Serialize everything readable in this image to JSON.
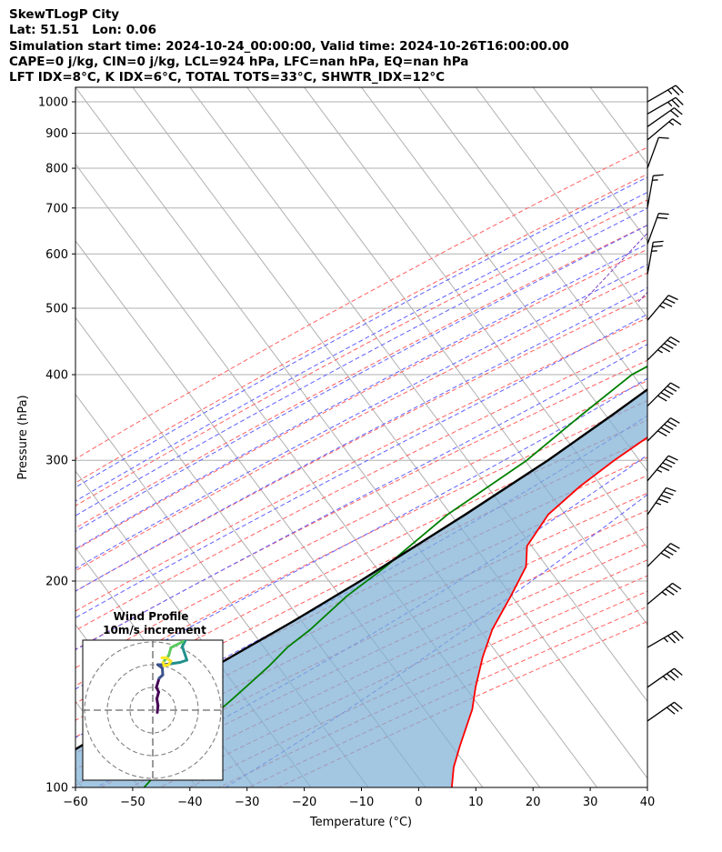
{
  "header": {
    "line1": "SkewTLogP City",
    "line2": "Lat: 51.51   Lon: 0.06",
    "line3": "Simulation start time: 2024-10-24_00:00:00, Valid time: 2024-10-26T16:00:00.00",
    "line4": "CAPE=0 j/kg, CIN=0 j/kg, LCL=924 hPa, LFC=nan hPa, EQ=nan hPa",
    "line5": "LFT IDX=8°C, K IDX=6°C, TOTAL TOTS=33°C, SHWTR_IDX=12°C"
  },
  "chart_data": {
    "type": "skewt-logp",
    "xlabel": "Temperature (°C)",
    "ylabel": "Pressure (hPa)",
    "xlim": [
      -60,
      40
    ],
    "ylim": [
      1050,
      100
    ],
    "x_ticks": [
      -60,
      -50,
      -40,
      -30,
      -20,
      -10,
      0,
      10,
      20,
      30,
      40
    ],
    "y_ticks": [
      100,
      200,
      300,
      400,
      500,
      600,
      700,
      800,
      900,
      1000
    ],
    "grid": true,
    "series": [
      {
        "name": "temperature",
        "color": "#ff0000",
        "points": [
          [
            1000,
            11.5
          ],
          [
            925,
            11.8
          ],
          [
            850,
            12.5
          ],
          [
            800,
            12.8
          ],
          [
            750,
            12.6
          ],
          [
            700,
            12.3
          ],
          [
            650,
            11.6
          ],
          [
            600,
            10.7
          ],
          [
            550,
            9.5
          ],
          [
            500,
            8.1
          ],
          [
            450,
            5.8
          ],
          [
            400,
            2.1
          ],
          [
            350,
            -2.8
          ],
          [
            300,
            -8.4
          ],
          [
            275,
            -11.0
          ],
          [
            250,
            -12.9
          ],
          [
            225,
            -12.5
          ],
          [
            210,
            -10.0
          ],
          [
            190,
            -8.8
          ],
          [
            170,
            -7.7
          ],
          [
            155,
            -5.8
          ],
          [
            140,
            -3.1
          ],
          [
            130,
            -0.8
          ],
          [
            115,
            1.8
          ],
          [
            107,
            3.5
          ],
          [
            100,
            5.8
          ]
        ]
      },
      {
        "name": "dewpoint",
        "color": "#008000",
        "points": [
          [
            1000,
            11.0
          ],
          [
            950,
            10.8
          ],
          [
            925,
            9.5
          ],
          [
            900,
            8.3
          ],
          [
            850,
            5.0
          ],
          [
            800,
            -0.2
          ],
          [
            750,
            -0.2
          ],
          [
            700,
            0.8
          ],
          [
            650,
            4.2
          ],
          [
            600,
            7.5
          ],
          [
            550,
            8.0
          ],
          [
            500,
            -0.5
          ],
          [
            450,
            -9.5
          ],
          [
            400,
            -16.5
          ],
          [
            350,
            -20.0
          ],
          [
            325,
            -21.8
          ],
          [
            300,
            -23.7
          ],
          [
            250,
            -30.5
          ],
          [
            220,
            -33.5
          ],
          [
            210,
            -34.5
          ],
          [
            190,
            -37.5
          ],
          [
            170,
            -39.5
          ],
          [
            160,
            -41.2
          ],
          [
            150,
            -42.0
          ],
          [
            135,
            -44.0
          ],
          [
            120,
            -46.5
          ],
          [
            100,
            -48.0
          ]
        ]
      },
      {
        "name": "parcel",
        "color": "#000000",
        "points": [
          [
            1000,
            16.4
          ],
          [
            950,
            12.3
          ],
          [
            924,
            11.1
          ],
          [
            900,
            10.0
          ],
          [
            850,
            8.6
          ],
          [
            800,
            7.1
          ],
          [
            750,
            5.6
          ],
          [
            700,
            4.1
          ],
          [
            650,
            2.5
          ],
          [
            600,
            0.6
          ],
          [
            550,
            -1.5
          ],
          [
            500,
            -3.8
          ],
          [
            450,
            -6.7
          ],
          [
            400,
            -10.2
          ],
          [
            350,
            -14.6
          ],
          [
            300,
            -20.0
          ],
          [
            250,
            -27.4
          ],
          [
            200,
            -37.1
          ],
          [
            175,
            -43.5
          ],
          [
            150,
            -51.5
          ],
          [
            125,
            -60.5
          ],
          [
            100,
            -71.0
          ]
        ]
      }
    ],
    "wind_barbs": [
      {
        "pressure": 1000,
        "spd_kt": 25,
        "dir": 240
      },
      {
        "pressure": 960,
        "spd_kt": 25,
        "dir": 240
      },
      {
        "pressure": 920,
        "spd_kt": 20,
        "dir": 235
      },
      {
        "pressure": 880,
        "spd_kt": 15,
        "dir": 230
      },
      {
        "pressure": 800,
        "spd_kt": 10,
        "dir": 200
      },
      {
        "pressure": 700,
        "spd_kt": 15,
        "dir": 190
      },
      {
        "pressure": 620,
        "spd_kt": 20,
        "dir": 200
      },
      {
        "pressure": 560,
        "spd_kt": 25,
        "dir": 190
      },
      {
        "pressure": 480,
        "spd_kt": 35,
        "dir": 220
      },
      {
        "pressure": 420,
        "spd_kt": 45,
        "dir": 225
      },
      {
        "pressure": 360,
        "spd_kt": 50,
        "dir": 225
      },
      {
        "pressure": 320,
        "spd_kt": 50,
        "dir": 225
      },
      {
        "pressure": 280,
        "spd_kt": 45,
        "dir": 220
      },
      {
        "pressure": 250,
        "spd_kt": 45,
        "dir": 215
      },
      {
        "pressure": 210,
        "spd_kt": 40,
        "dir": 225
      },
      {
        "pressure": 185,
        "spd_kt": 35,
        "dir": 230
      },
      {
        "pressure": 160,
        "spd_kt": 35,
        "dir": 240
      },
      {
        "pressure": 140,
        "spd_kt": 35,
        "dir": 235
      },
      {
        "pressure": 125,
        "spd_kt": 30,
        "dir": 235
      }
    ],
    "hodograph": {
      "title": "Wind Profile",
      "subtitle": "10m/s increment",
      "points": [
        [
          2,
          -1
        ],
        [
          2.3,
          2
        ],
        [
          1.8,
          5
        ],
        [
          2.6,
          8
        ],
        [
          1.6,
          10
        ],
        [
          2.8,
          14
        ],
        [
          4.4,
          15.5
        ],
        [
          4.2,
          18.5
        ],
        [
          2.2,
          20
        ],
        [
          4.8,
          20
        ],
        [
          8.5,
          20.5
        ],
        [
          12,
          21
        ],
        [
          15,
          22
        ],
        [
          13,
          28
        ],
        [
          15,
          32
        ],
        [
          14.5,
          33
        ],
        [
          13,
          30
        ],
        [
          8,
          27.5
        ],
        [
          7,
          24
        ],
        [
          4.5,
          21
        ],
        [
          5,
          19.5
        ],
        [
          7,
          20
        ],
        [
          8,
          21.5
        ],
        [
          6,
          23
        ],
        [
          4,
          23
        ]
      ]
    }
  }
}
